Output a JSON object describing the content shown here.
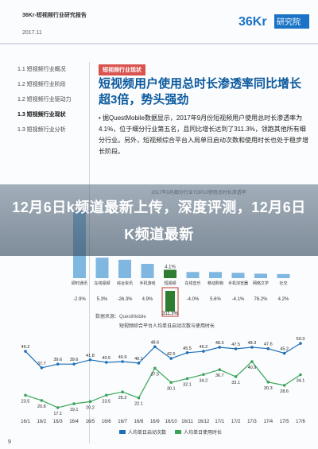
{
  "header": {
    "title": "36Kr-短视频行业研究报告",
    "date": "2017.11",
    "logo_text": "36Kr 研究院"
  },
  "toc": [
    {
      "label": "1.1  短视频行业概况"
    },
    {
      "label": "1.2  短视频行业阶段"
    },
    {
      "label": "1.2  短视频行业驱动力"
    },
    {
      "label": "1.3  短视频行业现状"
    },
    {
      "label": "1.3  短视频行业分析"
    }
  ],
  "section_tag": "短视频行业现状",
  "headline": "短视频用户使用总时长渗透率同比增长超3倍，势头强劲",
  "paragraph": "• 据QuestMobile数据显示，2017年9月份短视频用户使用总时长渗透率为4.1%，位于细分行业第五名，且同比增长达到了311.3%，领跑其他所有细分行业。另外，短视频综合平台入局单日启动次数和使用时长也处于稳步增长阶段。",
  "banner": {
    "text": "12月6日k频道最新上传，深度评测，12月6日K频道最新"
  },
  "bar_chart": {
    "title": "2017年9月细分行业TOP10使用总时长渗透率",
    "source": "数据来源：QuestMobile",
    "colors": {
      "bar": "#7fb7e0",
      "highlight": "#2e7d32",
      "neg": "#c0392b"
    },
    "categories": [
      "即时通讯",
      "在线视频",
      "综合资讯",
      "手机游戏",
      "短视频",
      "在线音乐",
      "移动购物",
      "手机浏览器",
      "网络文学",
      "社交"
    ],
    "share_labels": [
      "",
      "",
      "",
      "",
      "4.1%",
      "",
      "",
      "",
      "",
      ""
    ],
    "growth": [
      "-2.9%",
      "5.3%",
      "-26.3%",
      "4.9%",
      "311.3%",
      "-4.0%",
      "5.6%",
      "-4.1%",
      "76.2%",
      "4.2%"
    ],
    "values": [
      33,
      10,
      9,
      7,
      4.1,
      3,
      3,
      2.6,
      2.2,
      2
    ]
  },
  "line_chart": {
    "title": "短视频综合平台人均单日启动次数与使用时长",
    "colors": {
      "series1": "#1f6fb8",
      "series2": "#3aa55a"
    },
    "chart_data": {
      "type": "line",
      "categories": [
        "16/1",
        "16/2",
        "16/3",
        "16/4",
        "16/5",
        "16/6",
        "16/7",
        "16/8",
        "16/9",
        "16/10",
        "16/11",
        "16/12",
        "17/1",
        "17/2",
        "17/3",
        "17/4",
        "17/5",
        "17/6"
      ],
      "series": [
        {
          "name": "人均单日启动次数",
          "values": [
            46.2,
            37.7,
            39.6,
            39.6,
            41.8,
            40.5,
            40.9,
            40.1,
            48.6,
            42.5,
            45.5,
            46.2,
            48.3,
            47.5,
            48.3,
            47.6,
            45.2,
            50.3
          ]
        },
        {
          "name": "人均单日使用时长",
          "values": [
            23.5,
            20.8,
            17.1,
            19.1,
            20.2,
            23.5,
            25.2,
            22.1,
            37.5,
            30.1,
            32.1,
            34.2,
            36.7,
            33.1,
            40.9,
            30.3,
            28.6,
            34.1
          ]
        }
      ],
      "legend": [
        "人均单日启动次数",
        "人均单日使用时长"
      ]
    }
  },
  "footer": {
    "page_number": "9"
  }
}
